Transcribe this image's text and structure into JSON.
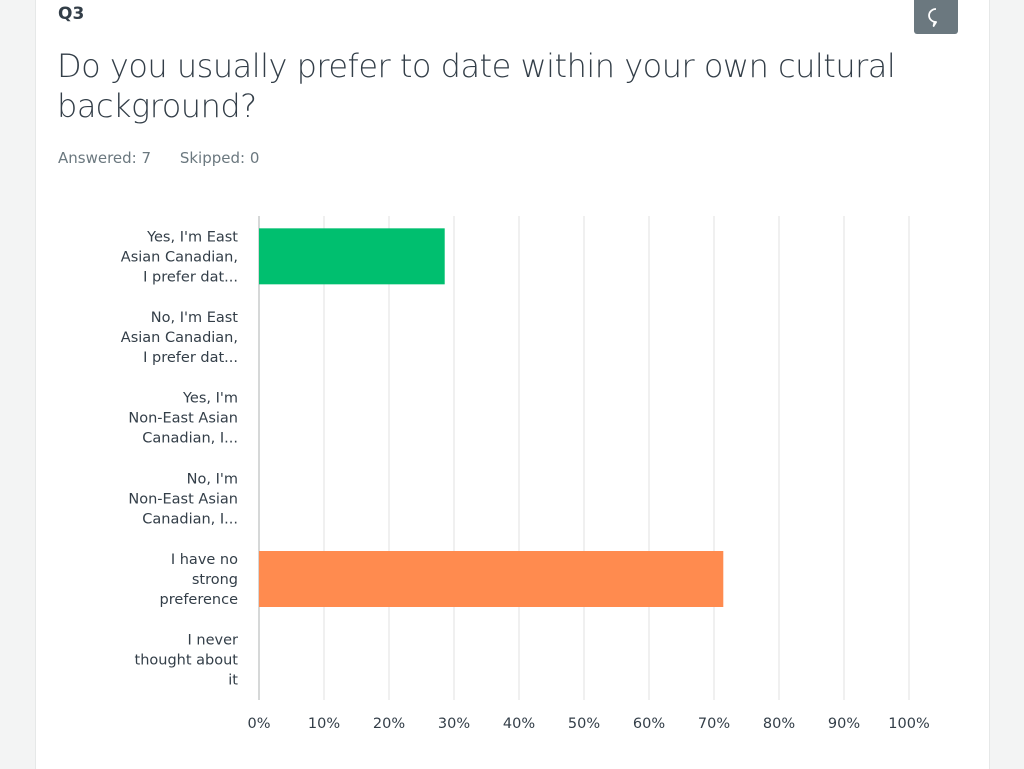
{
  "question": {
    "number": "Q3",
    "title": "Do you usually prefer to date within your own cultural background?",
    "answered": "Answered: 7",
    "skipped": "Skipped: 0"
  },
  "comment_icon": "speech-bubble-icon",
  "chart_data": {
    "type": "bar",
    "orientation": "horizontal",
    "categories": [
      [
        "Yes, I'm East",
        "Asian Canadian,",
        "I prefer dat..."
      ],
      [
        "No, I'm East",
        "Asian Canadian,",
        "I prefer dat..."
      ],
      [
        "Yes, I'm",
        "Non-East Asian",
        "Canadian, I..."
      ],
      [
        "No, I'm",
        "Non-East Asian",
        "Canadian, I..."
      ],
      [
        "I have no",
        "strong",
        "preference"
      ],
      [
        "I never",
        "thought about",
        "it"
      ]
    ],
    "values": [
      28.57,
      0,
      0,
      0,
      71.43,
      0
    ],
    "colors": [
      "#00bf6f",
      "#00bf6f",
      "#00bf6f",
      "#00bf6f",
      "#ff8b4f",
      "#00bf6f"
    ],
    "xlim": [
      0,
      100
    ],
    "xticks": [
      "0%",
      "10%",
      "20%",
      "30%",
      "40%",
      "50%",
      "60%",
      "70%",
      "80%",
      "90%",
      "100%"
    ],
    "grid": true
  }
}
